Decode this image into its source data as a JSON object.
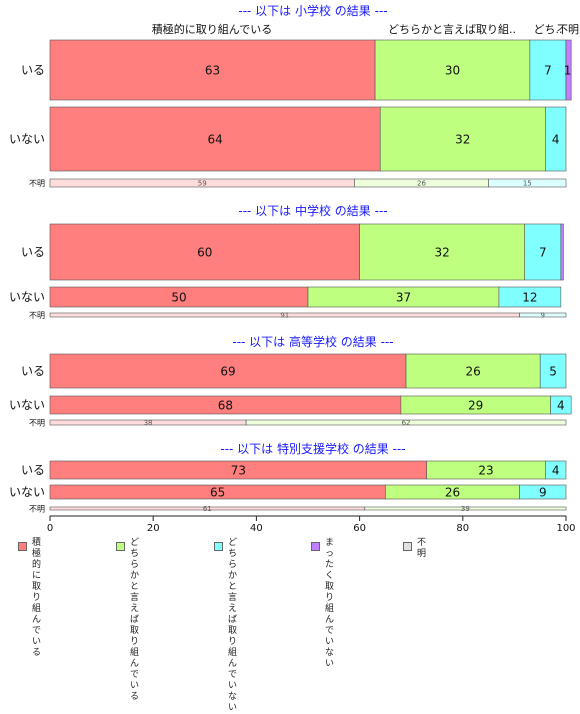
{
  "chart_data": {
    "type": "bar",
    "orientation": "horizontal",
    "stacked": true,
    "xlim": [
      0,
      100
    ],
    "xticks": [
      "0",
      "20",
      "40",
      "60",
      "80",
      "100"
    ],
    "categories_legend": [
      {
        "label": "積極的に\n取り組んでいる",
        "color": "#FF7F7F"
      },
      {
        "label": "どちらかと言えば\n取り組んでいる",
        "color": "#BFFF7F"
      },
      {
        "label": "どちらかと言えば\n取り組んでいない",
        "color": "#7FFFFF"
      },
      {
        "label": "まったく\n取り組んでいない",
        "color": "#BF7FFF"
      },
      {
        "label": "不明",
        "color": "#E0E0E0"
      }
    ],
    "column_headers": [
      "積極的に取り組んでいる",
      "どちらかと言えば取り組..",
      "どち..",
      "不明"
    ],
    "groups": [
      {
        "title": "--- 以下は 小学校 の結果 ---",
        "rows": [
          {
            "label": "いる",
            "values": [
              63,
              30,
              7,
              1
            ]
          },
          {
            "label": "いない",
            "values": [
              64,
              32,
              4,
              0
            ]
          },
          {
            "label": "不明",
            "values": [
              59,
              26,
              15,
              0
            ]
          }
        ]
      },
      {
        "title": "--- 以下は 中学校 の結果 ---",
        "rows": [
          {
            "label": "いる",
            "values": [
              60,
              32,
              7,
              0.5
            ]
          },
          {
            "label": "いない",
            "values": [
              50,
              37,
              12,
              0
            ]
          },
          {
            "label": "不明",
            "values": [
              91,
              0,
              9,
              0
            ]
          }
        ]
      },
      {
        "title": "--- 以下は 高等学校 の結果 ---",
        "rows": [
          {
            "label": "いる",
            "values": [
              69,
              26,
              5,
              0
            ]
          },
          {
            "label": "いない",
            "values": [
              68,
              29,
              4,
              0
            ]
          },
          {
            "label": "不明",
            "values": [
              38,
              62,
              0,
              0
            ]
          }
        ]
      },
      {
        "title": "--- 以下は 特別支援学校 の結果 ---",
        "rows": [
          {
            "label": "いる",
            "values": [
              73,
              23,
              4,
              0
            ]
          },
          {
            "label": "いない",
            "values": [
              65,
              26,
              9,
              0
            ]
          },
          {
            "label": "不明",
            "values": [
              61,
              39,
              0,
              0
            ]
          }
        ]
      }
    ]
  }
}
